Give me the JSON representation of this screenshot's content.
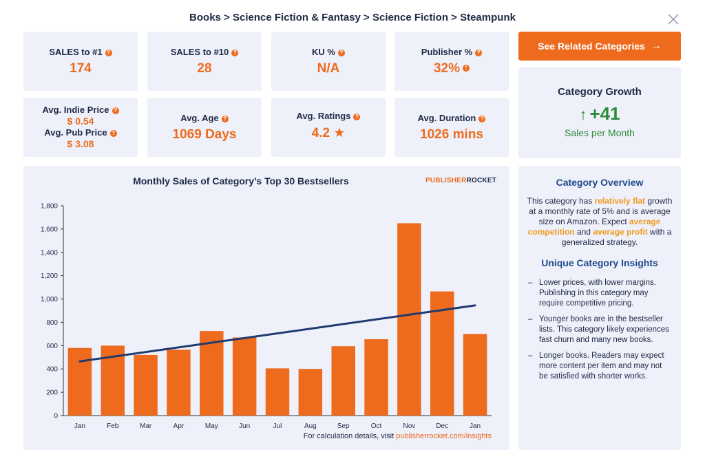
{
  "breadcrumb": "Books > Science Fiction & Fantasy > Science Fiction > Steampunk",
  "stats": {
    "sales_to_1": {
      "label": "SALES to #1",
      "value": "174"
    },
    "sales_to_10": {
      "label": "SALES to #10",
      "value": "28"
    },
    "ku": {
      "label": "KU %",
      "value": "N/A"
    },
    "publisher": {
      "label": "Publisher %",
      "value": "32%"
    },
    "indie_price": {
      "label": "Avg. Indie Price",
      "value": "$ 0.54"
    },
    "pub_price": {
      "label": "Avg. Pub Price",
      "value": "$ 3.08"
    },
    "age": {
      "label": "Avg. Age",
      "value": "1069 Days"
    },
    "ratings": {
      "label": "Avg. Ratings",
      "value": "4.2 ★"
    },
    "duration": {
      "label": "Avg. Duration",
      "value": "1026 mins"
    }
  },
  "cta": {
    "label": "See Related Categories",
    "arrow": "→"
  },
  "growth": {
    "title": "Category Growth",
    "arrow": "↑",
    "value": "+41",
    "subtitle": "Sales per Month"
  },
  "brand": {
    "part1": "PUBLISHER",
    "part2": "ROCKET"
  },
  "chart_data": {
    "type": "bar",
    "title": "Monthly Sales of Category’s Top 30 Bestsellers",
    "categories": [
      "Jan",
      "Feb",
      "Mar",
      "Apr",
      "May",
      "Jun",
      "Jul",
      "Aug",
      "Sep",
      "Oct",
      "Nov",
      "Dec",
      "Jan"
    ],
    "values": [
      580,
      600,
      520,
      565,
      725,
      670,
      405,
      400,
      595,
      655,
      1650,
      1065,
      700
    ],
    "trendline": {
      "start": 465,
      "end": 945
    },
    "ylim": [
      0,
      1800
    ],
    "yticks": [
      0,
      200,
      400,
      600,
      800,
      1000,
      1200,
      1400,
      1600,
      1800
    ],
    "ytick_labels": [
      "0",
      "200",
      "400",
      "600",
      "800",
      "1,000",
      "1,200",
      "1,400",
      "1,600",
      "1,800"
    ],
    "xlabel": "",
    "ylabel": "",
    "bar_color": "#ee6a1c",
    "trend_color": "#1f3a6e"
  },
  "footnote": {
    "text": "For calculation details, visit ",
    "link": "publisherrocket.com/insights"
  },
  "overview": {
    "title": "Category Overview",
    "p1": "This category has ",
    "h1": "relatively flat",
    "p2": " growth at a monthly rate of 5% and is average size on Amazon. Expect ",
    "h2": "average competition",
    "p3": " and ",
    "h3": "average profit",
    "p4": " with a generalized strategy.",
    "insights_title": "Unique Category Insights",
    "insights": [
      "Lower prices, with lower margins. Publishing in this category may require competitive pricing.",
      "Younger books are in the bestseller lists. This category likely experiences fast churn and many new books.",
      "Longer books. Readers may expect more content per item and may not be satisfied with shorter works."
    ]
  },
  "colors": {
    "accent": "#ee6a1c",
    "navy": "#1f2a44",
    "green": "#2e8b36",
    "card_bg": "#eef0fa"
  }
}
